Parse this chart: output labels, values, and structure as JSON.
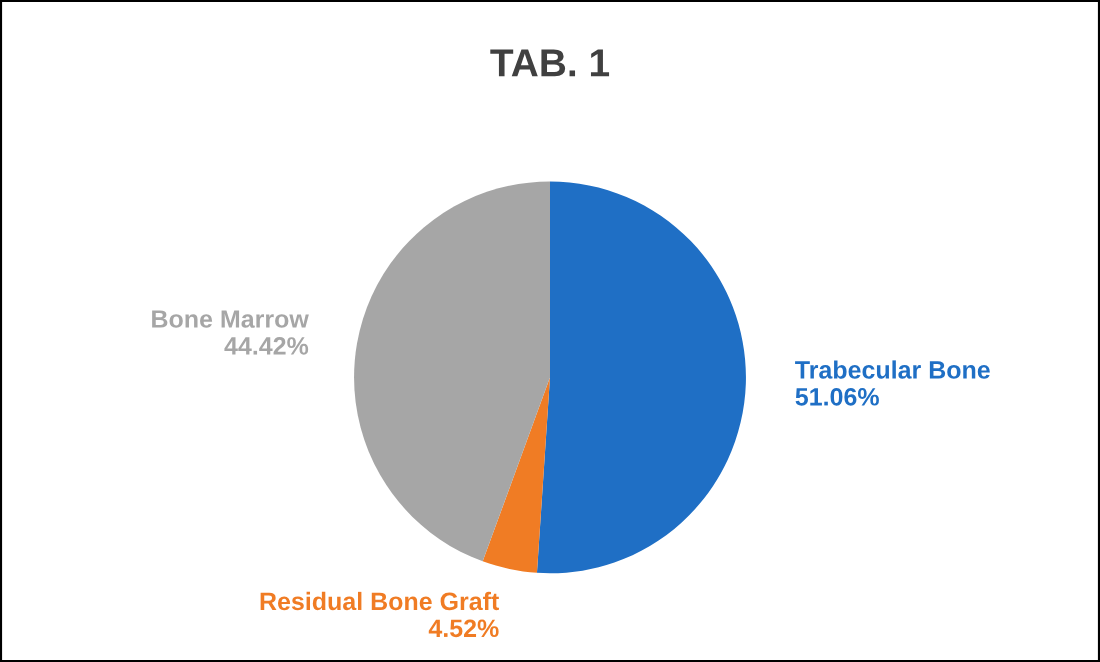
{
  "chart_data": {
    "type": "pie",
    "title": "TAB. 1",
    "categories": [
      "Trabecular Bone",
      "Residual Bone Graft",
      "Bone Marrow"
    ],
    "values": [
      51.06,
      4.52,
      44.42
    ],
    "value_labels": [
      "51.06%",
      "4.52%",
      "44.42%"
    ],
    "colors": [
      "#1f6fc5",
      "#f07c24",
      "#a6a6a6"
    ],
    "legend": false
  }
}
